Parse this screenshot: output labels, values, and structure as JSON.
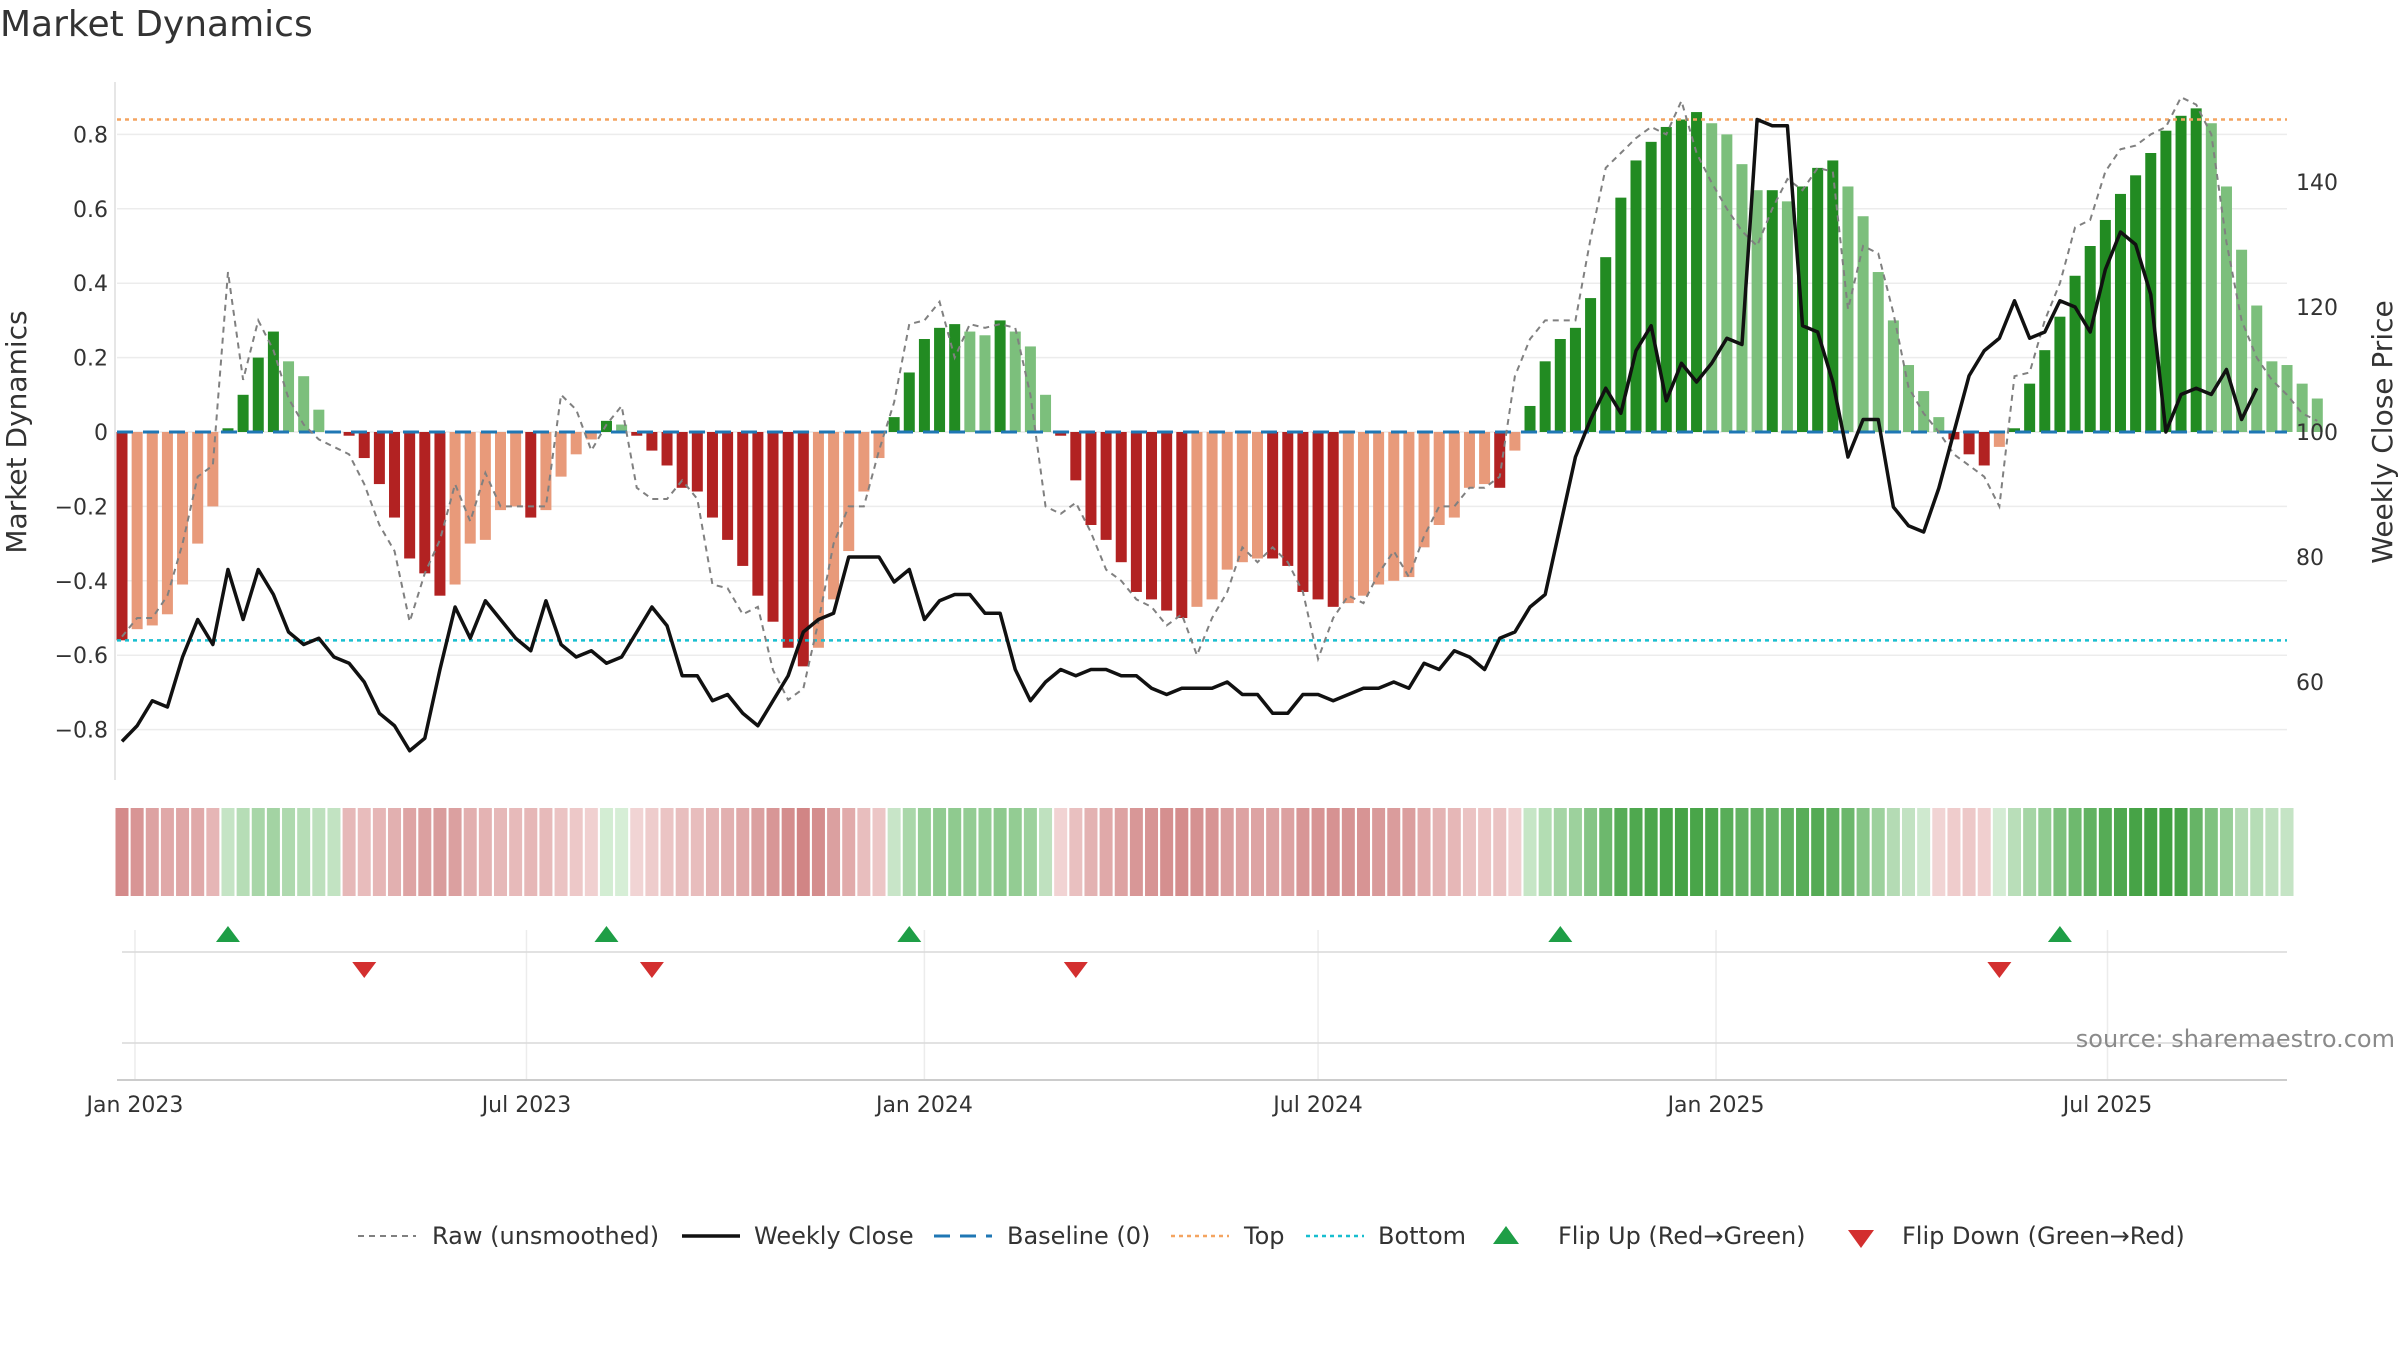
{
  "title": "Market Dynamics",
  "source": "source: sharemaestro.com",
  "chart_data": {
    "type": "bar",
    "title": "Market Dynamics",
    "ylabel": "Market Dynamics",
    "y2label": "Weekly Close Price",
    "ylim": [
      -0.93,
      0.95
    ],
    "y2lim": [
      43,
      156
    ],
    "yticks": [
      "0.8",
      "0.6",
      "0.4",
      "0.2",
      "0",
      "−0.2",
      "−0.4",
      "−0.6",
      "−0.8"
    ],
    "ytick_values": [
      0.8,
      0.6,
      0.4,
      0.2,
      0,
      -0.2,
      -0.4,
      -0.6,
      -0.8
    ],
    "y2ticks": [
      "140",
      "120",
      "100",
      "80",
      "60"
    ],
    "y2tick_values": [
      140,
      120,
      100,
      80,
      60
    ],
    "xticks": [
      "Jan 2023",
      "Jul 2023",
      "Jan 2024",
      "Jul 2024",
      "Jan 2025",
      "Jul 2025"
    ],
    "xtick_dates": [
      "2023-01-01",
      "2023-07-01",
      "2024-01-01",
      "2024-07-01",
      "2025-01-01",
      "2025-07-01"
    ],
    "start_date": "2022-12-26",
    "top_level": 0.84,
    "bottom_level": -0.56,
    "baseline": 0,
    "grid": true,
    "legend_position": "bottom",
    "colors": {
      "strong_green": "#228B22",
      "light_green": "#7CBF7C",
      "strong_red": "#B22222",
      "light_red": "#E89A7A",
      "raw": "#808080",
      "close": "#111111",
      "baseline": "#1F77B4",
      "top": "#F4A460",
      "bottom": "#17BECF",
      "flip_up": "#1E9E46",
      "flip_down": "#D32F2F"
    },
    "dynamics": [
      -0.56,
      -0.53,
      -0.52,
      -0.49,
      -0.41,
      -0.3,
      -0.2,
      0.01,
      0.1,
      0.2,
      0.27,
      0.19,
      0.15,
      0.06,
      0,
      -0.01,
      -0.07,
      -0.14,
      -0.23,
      -0.34,
      -0.38,
      -0.44,
      -0.41,
      -0.3,
      -0.29,
      -0.21,
      -0.2,
      -0.23,
      -0.21,
      -0.12,
      -0.06,
      -0.02,
      0.03,
      0.02,
      -0.01,
      -0.05,
      -0.09,
      -0.15,
      -0.16,
      -0.23,
      -0.29,
      -0.36,
      -0.44,
      -0.51,
      -0.58,
      -0.63,
      -0.58,
      -0.45,
      -0.32,
      -0.16,
      -0.07,
      0.04,
      0.16,
      0.25,
      0.28,
      0.29,
      0.27,
      0.26,
      0.3,
      0.27,
      0.23,
      0.1,
      -0.01,
      -0.13,
      -0.25,
      -0.29,
      -0.35,
      -0.43,
      -0.45,
      -0.48,
      -0.5,
      -0.47,
      -0.45,
      -0.37,
      -0.35,
      -0.34,
      -0.34,
      -0.36,
      -0.43,
      -0.45,
      -0.47,
      -0.46,
      -0.44,
      -0.41,
      -0.4,
      -0.39,
      -0.31,
      -0.25,
      -0.23,
      -0.15,
      -0.14,
      -0.15,
      -0.05,
      0.07,
      0.19,
      0.25,
      0.28,
      0.36,
      0.47,
      0.63,
      0.73,
      0.78,
      0.82,
      0.84,
      0.86,
      0.83,
      0.8,
      0.72,
      0.65,
      0.65,
      0.62,
      0.66,
      0.71,
      0.73,
      0.66,
      0.58,
      0.43,
      0.3,
      0.18,
      0.11,
      0.04,
      -0.02,
      -0.06,
      -0.09,
      -0.04,
      0.01,
      0.13,
      0.22,
      0.31,
      0.42,
      0.5,
      0.57,
      0.64,
      0.69,
      0.75,
      0.81,
      0.85,
      0.87,
      0.83,
      0.66,
      0.49,
      0.34,
      0.19,
      0.18,
      0.13,
      0.09
    ],
    "raw": [
      -0.55,
      -0.5,
      -0.5,
      -0.44,
      -0.3,
      -0.12,
      -0.09,
      0.43,
      0.14,
      0.3,
      0.22,
      0.09,
      0.02,
      -0.02,
      -0.04,
      -0.06,
      -0.14,
      -0.25,
      -0.32,
      -0.51,
      -0.38,
      -0.29,
      -0.14,
      -0.24,
      -0.11,
      -0.2,
      -0.2,
      -0.2,
      -0.2,
      0.1,
      0.06,
      -0.05,
      0.02,
      0.07,
      -0.15,
      -0.18,
      -0.18,
      -0.13,
      -0.18,
      -0.41,
      -0.42,
      -0.49,
      -0.47,
      -0.64,
      -0.72,
      -0.69,
      -0.51,
      -0.3,
      -0.2,
      -0.2,
      -0.05,
      0.08,
      0.29,
      0.3,
      0.35,
      0.2,
      0.29,
      0.28,
      0.29,
      0.28,
      0.1,
      -0.2,
      -0.22,
      -0.19,
      -0.27,
      -0.37,
      -0.4,
      -0.45,
      -0.47,
      -0.52,
      -0.49,
      -0.6,
      -0.5,
      -0.43,
      -0.31,
      -0.35,
      -0.31,
      -0.35,
      -0.43,
      -0.61,
      -0.5,
      -0.44,
      -0.46,
      -0.38,
      -0.32,
      -0.39,
      -0.28,
      -0.2,
      -0.2,
      -0.15,
      -0.15,
      -0.12,
      0.15,
      0.25,
      0.3,
      0.3,
      0.3,
      0.52,
      0.71,
      0.75,
      0.79,
      0.82,
      0.8,
      0.89,
      0.75,
      0.67,
      0.6,
      0.54,
      0.5,
      0.6,
      0.68,
      0.65,
      0.71,
      0.7,
      0.33,
      0.5,
      0.48,
      0.32,
      0.12,
      0.05,
      0,
      -0.06,
      -0.09,
      -0.12,
      -0.2,
      0.15,
      0.16,
      0.3,
      0.4,
      0.55,
      0.57,
      0.7,
      0.76,
      0.77,
      0.8,
      0.82,
      0.9,
      0.88,
      0.8,
      0.51,
      0.3,
      0.2,
      0.14,
      0.1,
      0.05,
      0.03
    ],
    "close": [
      50.5,
      53,
      57,
      56,
      64,
      70,
      66,
      78,
      70,
      78,
      74,
      68,
      66,
      67,
      64,
      63,
      60,
      55,
      53,
      49,
      51,
      62,
      72,
      67,
      73,
      70,
      67,
      65,
      73,
      66,
      64,
      65,
      63,
      64,
      68,
      72,
      69,
      61,
      61,
      57,
      58,
      55,
      53,
      57,
      61,
      68,
      70,
      71,
      80,
      80,
      80,
      76,
      78,
      70,
      73,
      74,
      74,
      71,
      71,
      62,
      57,
      60,
      62,
      61,
      62,
      62,
      61,
      61,
      59,
      58,
      59,
      59,
      59,
      60,
      58,
      58,
      55,
      55,
      58,
      58,
      57,
      58,
      59,
      59,
      60,
      59,
      63,
      62,
      65,
      64,
      62,
      67,
      68,
      72,
      74,
      85,
      96,
      102,
      107,
      103,
      113,
      117,
      105,
      111,
      108,
      111,
      115,
      114,
      150,
      149,
      149,
      117,
      116,
      108,
      96,
      102,
      102,
      88,
      85,
      84,
      91,
      100,
      109,
      113,
      115,
      121,
      115,
      116,
      121,
      120,
      116,
      126,
      132,
      130,
      122,
      100,
      106,
      107,
      106,
      110,
      102,
      107
    ],
    "color_band": [
      "#D48A8A",
      "#D89595",
      "#DDA2A2",
      "#E0A8A8",
      "#DFA6A6",
      "#E0A9A9",
      "#E6B6B6",
      "#C5E4C5",
      "#B6DDB6",
      "#A8D6A8",
      "#A3D3A3",
      "#AED9AE",
      "#B6DDB6",
      "#BDE0BD",
      "#C2E3C2",
      "#E6B8B8",
      "#E8BCBC",
      "#E6B6B6",
      "#E2B0B0",
      "#DEA4A4",
      "#DBA0A0",
      "#D99C9C",
      "#DBA0A0",
      "#E2AFAF",
      "#E4B3B3",
      "#E6B8B8",
      "#E7BABA",
      "#E6B7B7",
      "#E7BABA",
      "#EBC3C3",
      "#EDC8C8",
      "#F0D0D0",
      "#D3EDD3",
      "#D6EED6",
      "#F1D4D4",
      "#EECCCC",
      "#EBC4C4",
      "#E8BEBE",
      "#E8BDBD",
      "#E5B5B5",
      "#E2B0B0",
      "#E0A9A9",
      "#DBA0A0",
      "#D89696",
      "#D48D8D",
      "#D18585",
      "#D48D8D",
      "#DBA0A0",
      "#E1ABAB",
      "#E8BEBE",
      "#ECC6C6",
      "#C8E5C8",
      "#AAD7AA",
      "#97CE97",
      "#91CB91",
      "#8FCA8F",
      "#93CC93",
      "#95CD95",
      "#8DC98D",
      "#93CC93",
      "#9DD19D",
      "#BFE1BF",
      "#F1D3D3",
      "#E9C0C0",
      "#E3B2B2",
      "#E0A9A9",
      "#DDA2A2",
      "#D89797",
      "#D79494",
      "#D58F8F",
      "#D48C8C",
      "#D59191",
      "#D79494",
      "#DB9F9F",
      "#DDA2A2",
      "#DDA3A3",
      "#DDA3A3",
      "#DCA1A1",
      "#D89696",
      "#D79494",
      "#D69292",
      "#D69393",
      "#D79494",
      "#D99A9A",
      "#DA9C9C",
      "#DB9E9E",
      "#E1ABAB",
      "#E4B3B3",
      "#E6B7B7",
      "#EBC3C3",
      "#ECC5C5",
      "#EBC3C3",
      "#F0D1D1",
      "#C6E6C6",
      "#B3DDB3",
      "#A5D5A5",
      "#9DD19D",
      "#86C586",
      "#6DB86D",
      "#56AC56",
      "#4FA84F",
      "#4BA64B",
      "#48A448",
      "#46A346",
      "#49A549",
      "#4CA74C",
      "#58AD58",
      "#62B262",
      "#62B262",
      "#66B466",
      "#60B160",
      "#58AD58",
      "#55AB55",
      "#60B160",
      "#6CB76C",
      "#86C586",
      "#9DD19D",
      "#B4DBB4",
      "#C2E2C2",
      "#CFE9CF",
      "#F1D4D4",
      "#EFCCCC",
      "#EDC8C8",
      "#F0CFCF",
      "#D4ECD4",
      "#B9DEB9",
      "#A5D5A5",
      "#93CC93",
      "#7DC17D",
      "#6EB96E",
      "#62B262",
      "#56AC56",
      "#4FA84F",
      "#47A347",
      "#43A143",
      "#41A041",
      "#47A347",
      "#66B466",
      "#80C280",
      "#97CE97",
      "#B4DBB4",
      "#B6DDB6",
      "#BFE1BF",
      "#C5E4C5"
    ],
    "flips": [
      {
        "index": 7,
        "direction": "up"
      },
      {
        "index": 16,
        "direction": "down"
      },
      {
        "index": 32,
        "direction": "up"
      },
      {
        "index": 35,
        "direction": "down"
      },
      {
        "index": 52,
        "direction": "up"
      },
      {
        "index": 63,
        "direction": "down"
      },
      {
        "index": 95,
        "direction": "up"
      },
      {
        "index": 124,
        "direction": "down"
      },
      {
        "index": 128,
        "direction": "up"
      }
    ]
  },
  "legend": {
    "raw": "Raw (unsmoothed)",
    "close": "Weekly Close",
    "baseline": "Baseline (0)",
    "top": "Top",
    "bottom": "Bottom",
    "flip_up": "Flip Up (Red→Green)",
    "flip_down": "Flip Down (Green→Red)"
  }
}
